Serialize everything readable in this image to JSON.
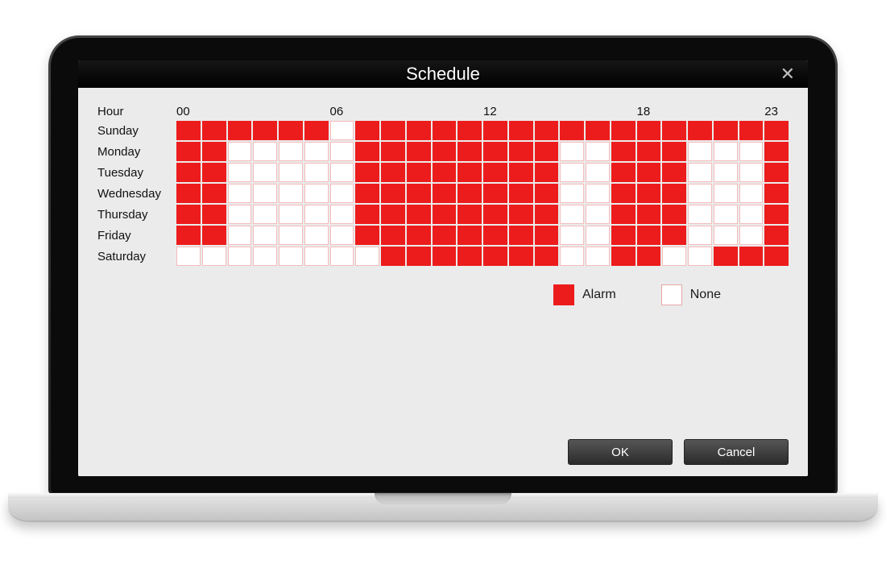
{
  "dialog": {
    "title": "Schedule",
    "close_glyph": "✕"
  },
  "schedule": {
    "hour_label": "Hour",
    "hour_ticks": {
      "0": "00",
      "6": "06",
      "12": "12",
      "18": "18",
      "23": "23"
    },
    "days": [
      "Sunday",
      "Monday",
      "Tuesday",
      "Wednesday",
      "Thursday",
      "Friday",
      "Saturday"
    ],
    "grid": [
      [
        1,
        1,
        1,
        1,
        1,
        1,
        0,
        1,
        1,
        1,
        1,
        1,
        1,
        1,
        1,
        1,
        1,
        1,
        1,
        1,
        1,
        1,
        1,
        1
      ],
      [
        1,
        1,
        0,
        0,
        0,
        0,
        0,
        1,
        1,
        1,
        1,
        1,
        1,
        1,
        1,
        0,
        0,
        1,
        1,
        1,
        0,
        0,
        0,
        1
      ],
      [
        1,
        1,
        0,
        0,
        0,
        0,
        0,
        1,
        1,
        1,
        1,
        1,
        1,
        1,
        1,
        0,
        0,
        1,
        1,
        1,
        0,
        0,
        0,
        1
      ],
      [
        1,
        1,
        0,
        0,
        0,
        0,
        0,
        1,
        1,
        1,
        1,
        1,
        1,
        1,
        1,
        0,
        0,
        1,
        1,
        1,
        0,
        0,
        0,
        1
      ],
      [
        1,
        1,
        0,
        0,
        0,
        0,
        0,
        1,
        1,
        1,
        1,
        1,
        1,
        1,
        1,
        0,
        0,
        1,
        1,
        1,
        0,
        0,
        0,
        1
      ],
      [
        1,
        1,
        0,
        0,
        0,
        0,
        0,
        1,
        1,
        1,
        1,
        1,
        1,
        1,
        1,
        0,
        0,
        1,
        1,
        1,
        0,
        0,
        0,
        1
      ],
      [
        0,
        0,
        0,
        0,
        0,
        0,
        0,
        0,
        1,
        1,
        1,
        1,
        1,
        1,
        1,
        0,
        0,
        1,
        1,
        0,
        0,
        1,
        1,
        1
      ]
    ],
    "colors": {
      "alarm": "#ed1c1c",
      "none": "#ffffff",
      "cell_border_off": "#f5bcbc",
      "dialog_bg": "#ebebeb"
    }
  },
  "legend": {
    "alarm_label": "Alarm",
    "none_label": "None"
  },
  "buttons": {
    "ok": "OK",
    "cancel": "Cancel"
  }
}
